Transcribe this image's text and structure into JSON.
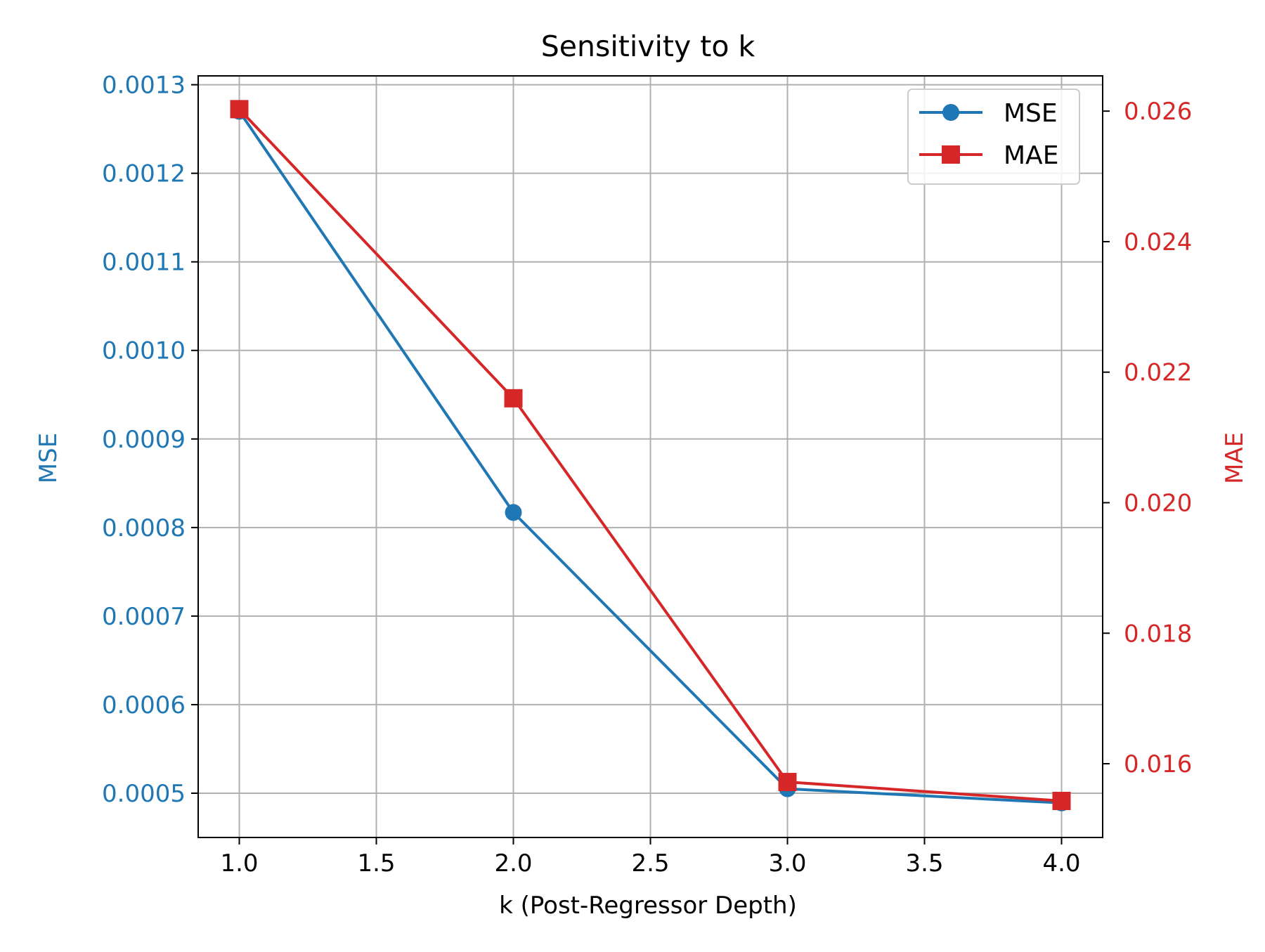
{
  "chart_data": {
    "type": "line",
    "title": "Sensitivity to k",
    "xlabel": "k (Post-Regressor Depth)",
    "xlim": [
      0.85,
      4.15
    ],
    "xticks": [
      1.0,
      1.5,
      2.0,
      2.5,
      3.0,
      3.5,
      4.0
    ],
    "xtick_labels": [
      "1.0",
      "1.5",
      "2.0",
      "2.5",
      "3.0",
      "3.5",
      "4.0"
    ],
    "grid": true,
    "legend_position": "top-right",
    "x": [
      1.0,
      2.0,
      3.0,
      4.0
    ],
    "left_axis": {
      "label": "MSE",
      "color": "#1f77b4",
      "ylim": [
        0.00045,
        0.00131
      ],
      "ticks": [
        0.0005,
        0.0006,
        0.0007,
        0.0008,
        0.0009,
        0.001,
        0.0011,
        0.0012,
        0.0013
      ],
      "tick_labels": [
        "0.0005",
        "0.0006",
        "0.0007",
        "0.0008",
        "0.0009",
        "0.0010",
        "0.0011",
        "0.0012",
        "0.0013"
      ]
    },
    "right_axis": {
      "label": "MAE",
      "color": "#d62728",
      "ylim": [
        0.01487,
        0.02654
      ],
      "ticks": [
        0.016,
        0.018,
        0.02,
        0.022,
        0.024,
        0.026
      ],
      "tick_labels": [
        "0.016",
        "0.018",
        "0.020",
        "0.022",
        "0.024",
        "0.026"
      ]
    },
    "series": [
      {
        "name": "MSE",
        "axis": "left",
        "marker": "circle",
        "color": "#1f77b4",
        "values": [
          0.00127,
          0.000817,
          0.000505,
          0.000489
        ]
      },
      {
        "name": "MAE",
        "axis": "right",
        "marker": "square",
        "color": "#d62728",
        "values": [
          0.02603,
          0.0216,
          0.01572,
          0.01543
        ]
      }
    ]
  }
}
